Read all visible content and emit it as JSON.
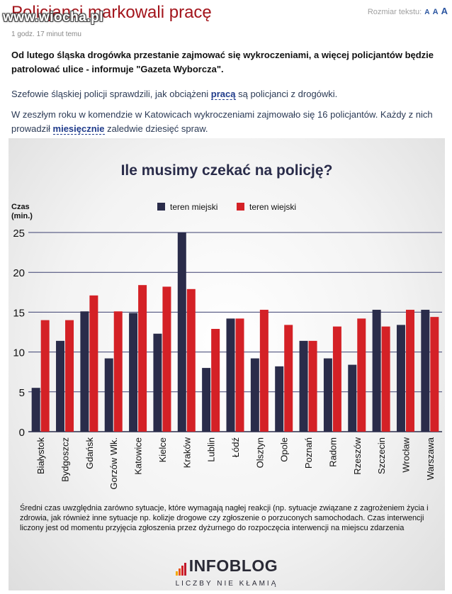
{
  "site": {
    "watermark": "www.wiocha.pl"
  },
  "article": {
    "title": "Policjanci markowali pracę",
    "timestamp": "1 godz. 17 minut temu",
    "text_size_label": "Rozmiar tekstu:",
    "text_size_options": [
      "A",
      "A",
      "A"
    ],
    "lead": "Od lutego śląska drogówka przestanie zajmować się wykroczeniami, a więcej policjantów będzie patrolować ulice - informuje \"Gazeta Wyborcza\".",
    "para1": {
      "before": "Szefowie śląskiej policji sprawdzili, jak obciążeni ",
      "link": "pracą",
      "after": " są policjanci z drogówki."
    },
    "para2": {
      "before": "W zeszłym roku w komendzie w Katowicach wykroczeniami zajmowało się 16 policjantów. Każdy z nich prowadził ",
      "link": "miesięcznie",
      "after": " zaledwie dziesięć spraw."
    }
  },
  "chart_data": {
    "type": "bar",
    "title": "Ile musimy czekać na policję?",
    "ylabel": "Czas (min.)",
    "ylim": [
      0,
      25
    ],
    "yticks": [
      0,
      5,
      10,
      15,
      20,
      25
    ],
    "grid": true,
    "legend_position": "top-center",
    "categories": [
      "Białystok",
      "Bydgoszcz",
      "Gdańsk",
      "Gorzów Wlk.",
      "Katowice",
      "Kielce",
      "Kraków",
      "Lublin",
      "Łódź",
      "Olsztyn",
      "Opole",
      "Poznań",
      "Radom",
      "Rzeszów",
      "Szczecin",
      "Wrocław",
      "Warszawa"
    ],
    "series": [
      {
        "name": "teren miejski",
        "color": "#2a2c4a",
        "values": [
          5.5,
          11.4,
          15.1,
          9.2,
          14.9,
          12.3,
          25.0,
          8.0,
          14.2,
          9.2,
          8.2,
          11.4,
          9.2,
          8.4,
          15.3,
          13.4,
          15.3
        ]
      },
      {
        "name": "teren wiejski",
        "color": "#d42126",
        "values": [
          14.0,
          14.0,
          17.1,
          15.1,
          18.4,
          18.2,
          17.9,
          12.9,
          14.2,
          15.3,
          13.4,
          11.4,
          13.2,
          14.2,
          13.2,
          15.3,
          14.4
        ]
      }
    ]
  },
  "infographic": {
    "note": "Średni czas uwzględnia zarówno sytuacje, które wymagają nagłej reakcji (np.  sytuacje związane z zagrożeniem życia i zdrowia, jak również inne sytuacje np. kolizje drogowe czy zgłoszenie o porzuconych samochodach. Czas interwencji liczony jest od momentu przyjęcia zgłoszenia przez dyżurnego do rozpoczęcia interwencji na miejscu zdarzenia",
    "logo_name": "INFOBLOG",
    "logo_tagline": "LICZBY NIE KŁAMIĄ",
    "logo_bar_colors": [
      "#f2a900",
      "#e8541b",
      "#d42126",
      "#c0182a"
    ]
  }
}
